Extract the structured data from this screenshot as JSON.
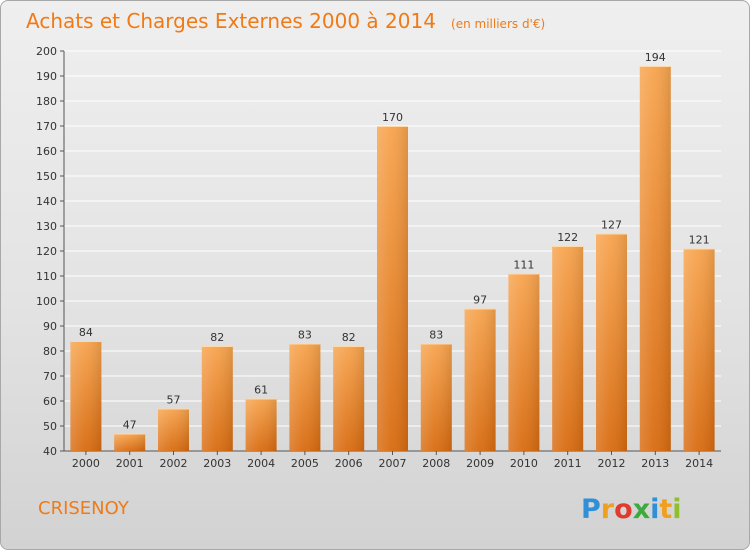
{
  "chart_data": {
    "type": "bar",
    "title": "Achats et Charges Externes 2000 à 2014",
    "subtitle": "(en milliers d'€)",
    "categories": [
      "2000",
      "2001",
      "2002",
      "2003",
      "2004",
      "2005",
      "2006",
      "2007",
      "2008",
      "2009",
      "2010",
      "2011",
      "2012",
      "2013",
      "2014"
    ],
    "values": [
      84,
      47,
      57,
      82,
      61,
      83,
      82,
      170,
      83,
      97,
      111,
      122,
      127,
      194,
      121
    ],
    "ylim": [
      40,
      200
    ],
    "yticks": [
      40,
      50,
      60,
      70,
      80,
      90,
      100,
      110,
      120,
      130,
      140,
      150,
      160,
      170,
      180,
      190,
      200
    ],
    "grid": true,
    "xlabel": "",
    "ylabel": "",
    "bar_color_light": "#f7a44e",
    "bar_color_dark": "#d86b10",
    "title_color": "#f07a15"
  },
  "footer": {
    "commune": "CRISENOY",
    "logo_letters": [
      "P",
      "r",
      "o",
      "x",
      "i",
      "t",
      "i"
    ],
    "logo_colors": [
      "#2f8fd8",
      "#f0a020",
      "#e23b2e",
      "#3caa3c",
      "#2f8fd8",
      "#f0a020",
      "#8fbf2a"
    ]
  }
}
